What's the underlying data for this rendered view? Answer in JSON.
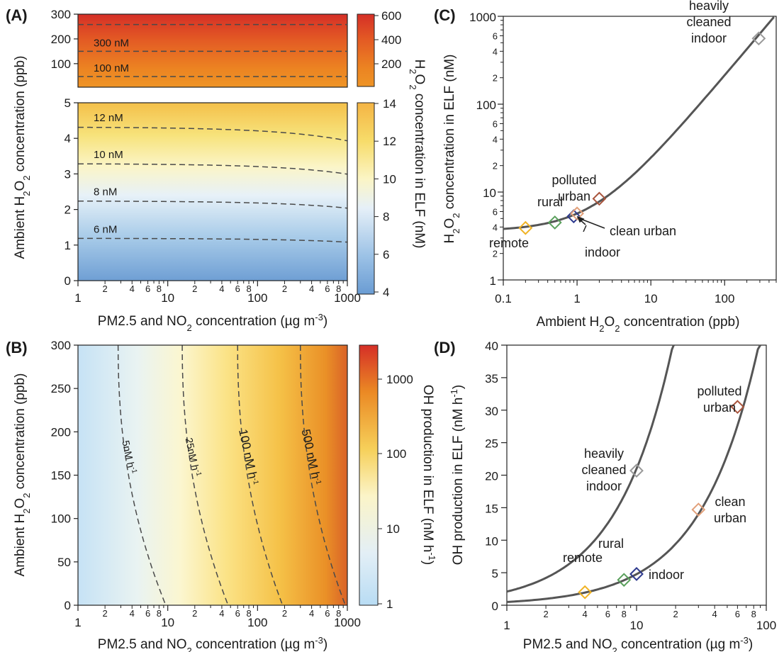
{
  "chart_data": [
    {
      "type": "heatmap",
      "panel": "(A)",
      "xscale": "log",
      "xlim": [
        1,
        1000
      ],
      "xlabel": "PM2.5 and NO<sub>2</sub> concentration (µg m<sup>-3</sup>)",
      "ylabel": "Ambient H<sub>2</sub>O<sub>2</sub> concentration (ppb)",
      "colorbar_label": "H<sub>2</sub>O<sub>2</sub> concentration in ELF (nM)",
      "top": {
        "ylim": [
          5,
          300
        ],
        "yticks": [
          100,
          200,
          300
        ],
        "colorbar_ticks": [
          200,
          400,
          600
        ],
        "contours": [
          {
            "label": "300 nM",
            "y": 150
          },
          {
            "label": "100 nM",
            "y": 48
          },
          {
            "label": "",
            "y": 258
          }
        ]
      },
      "bottom": {
        "ylim": [
          0,
          5
        ],
        "yticks": [
          0,
          1,
          2,
          3,
          4,
          5
        ],
        "colorbar_ticks": [
          4,
          6,
          8,
          10,
          12,
          14
        ],
        "contours": [
          {
            "label": "12 nM",
            "y0": 4.32
          },
          {
            "label": "10 nM",
            "y0": 3.29
          },
          {
            "label": "8 nM",
            "y0": 2.24
          },
          {
            "label": "6 nM",
            "y0": 1.19
          }
        ]
      },
      "xticks": [
        "1",
        "10",
        "100",
        "1000"
      ],
      "xminor": [
        "2",
        "4",
        "6",
        "8"
      ]
    },
    {
      "type": "heatmap",
      "panel": "(B)",
      "xscale": "log",
      "xlim": [
        1,
        1000
      ],
      "ylim": [
        0,
        300
      ],
      "yticks": [
        0,
        50,
        100,
        150,
        200,
        250,
        300
      ],
      "xlabel": "PM2.5 and NO<sub>2</sub> concentration (µg m<sup>-3</sup>)",
      "ylabel": "Ambient H<sub>2</sub>O<sub>2</sub> concentration (ppb)",
      "colorbar_label": "OH production in ELF (nM h<sup>-1</sup>)",
      "colorbar_ticks": [
        "1",
        "10",
        "100",
        "1000"
      ],
      "contours": [
        {
          "label": "5nM h<tspan baseline-shift=\"super\" font-size=\"10\">-1</tspan>",
          "x_top": 2.8,
          "x_bottom": 9.5
        },
        {
          "label": "25nM h<tspan baseline-shift=\"super\" font-size=\"10\">-1</tspan>",
          "x_top": 14.5,
          "x_bottom": 47
        },
        {
          "label": "100 nM h<tspan baseline-shift=\"super\" font-size=\"10\">-1</tspan>",
          "x_top": 60,
          "x_bottom": 190
        },
        {
          "label": "500 nM h<tspan baseline-shift=\"super\" font-size=\"10\">-1</tspan>",
          "x_top": 300,
          "x_bottom": 950
        }
      ]
    },
    {
      "type": "line",
      "panel": "(C)",
      "xscale": "log",
      "yscale": "log",
      "xlim": [
        0.1,
        500
      ],
      "ylim": [
        1,
        1000
      ],
      "xticks": [
        "0.1",
        "1",
        "10",
        "100"
      ],
      "yticks": [
        "1",
        "10",
        "100",
        "1000"
      ],
      "yminor": [
        "2",
        "4",
        "6"
      ],
      "xlabel": "Ambient H<sub>2</sub>O<sub>2</sub> concentration (ppb)",
      "ylabel": "H<sub>2</sub>O<sub>2</sub> concentration in ELF (nM)",
      "points": [
        {
          "label": "remote",
          "x": 0.2,
          "y": 3.9,
          "color": "#f0b325"
        },
        {
          "label": "rural",
          "x": 0.5,
          "y": 4.5,
          "color": "#5aa05c"
        },
        {
          "label": "indoor",
          "x": 0.9,
          "y": 5.3,
          "color": "#2e3a8e"
        },
        {
          "label": "clean urban",
          "x": 1.0,
          "y": 5.7,
          "color": "#e2a07a"
        },
        {
          "label": "polluted urban",
          "x": 2.0,
          "y": 8.4,
          "color": "#a9553d"
        },
        {
          "label": "heavily cleaned indoor",
          "x": 290,
          "y": 560,
          "color": "#9a9a9a"
        }
      ]
    },
    {
      "type": "line",
      "panel": "(D)",
      "xscale": "log",
      "xlim": [
        1,
        100
      ],
      "ylim": [
        0,
        40
      ],
      "xticks": [
        "1",
        "10",
        "100"
      ],
      "xminor": [
        "2",
        "4",
        "6",
        "8"
      ],
      "yticks": [
        0,
        5,
        10,
        15,
        20,
        25,
        30,
        35,
        40
      ],
      "xlabel": "PM2.5 and NO<sub>2</sub> concentration (µg m<sup>-3</sup>)",
      "ylabel": "OH production in ELF (nM h<sup>-1</sup>)",
      "points": [
        {
          "label": "remote",
          "x": 4.0,
          "y": 2.0,
          "color": "#f0b325"
        },
        {
          "label": "rural",
          "x": 8.0,
          "y": 3.9,
          "color": "#5aa05c"
        },
        {
          "label": "indoor",
          "x": 10.0,
          "y": 4.8,
          "color": "#2e3a8e"
        },
        {
          "label": "heavily cleaned indoor",
          "x": 10.0,
          "y": 20.7,
          "color": "#9a9a9a"
        },
        {
          "label": "clean urban",
          "x": 30.0,
          "y": 14.7,
          "color": "#e2a07a"
        },
        {
          "label": "polluted urban",
          "x": 60.0,
          "y": 30.5,
          "color": "#a9553d"
        }
      ]
    }
  ]
}
